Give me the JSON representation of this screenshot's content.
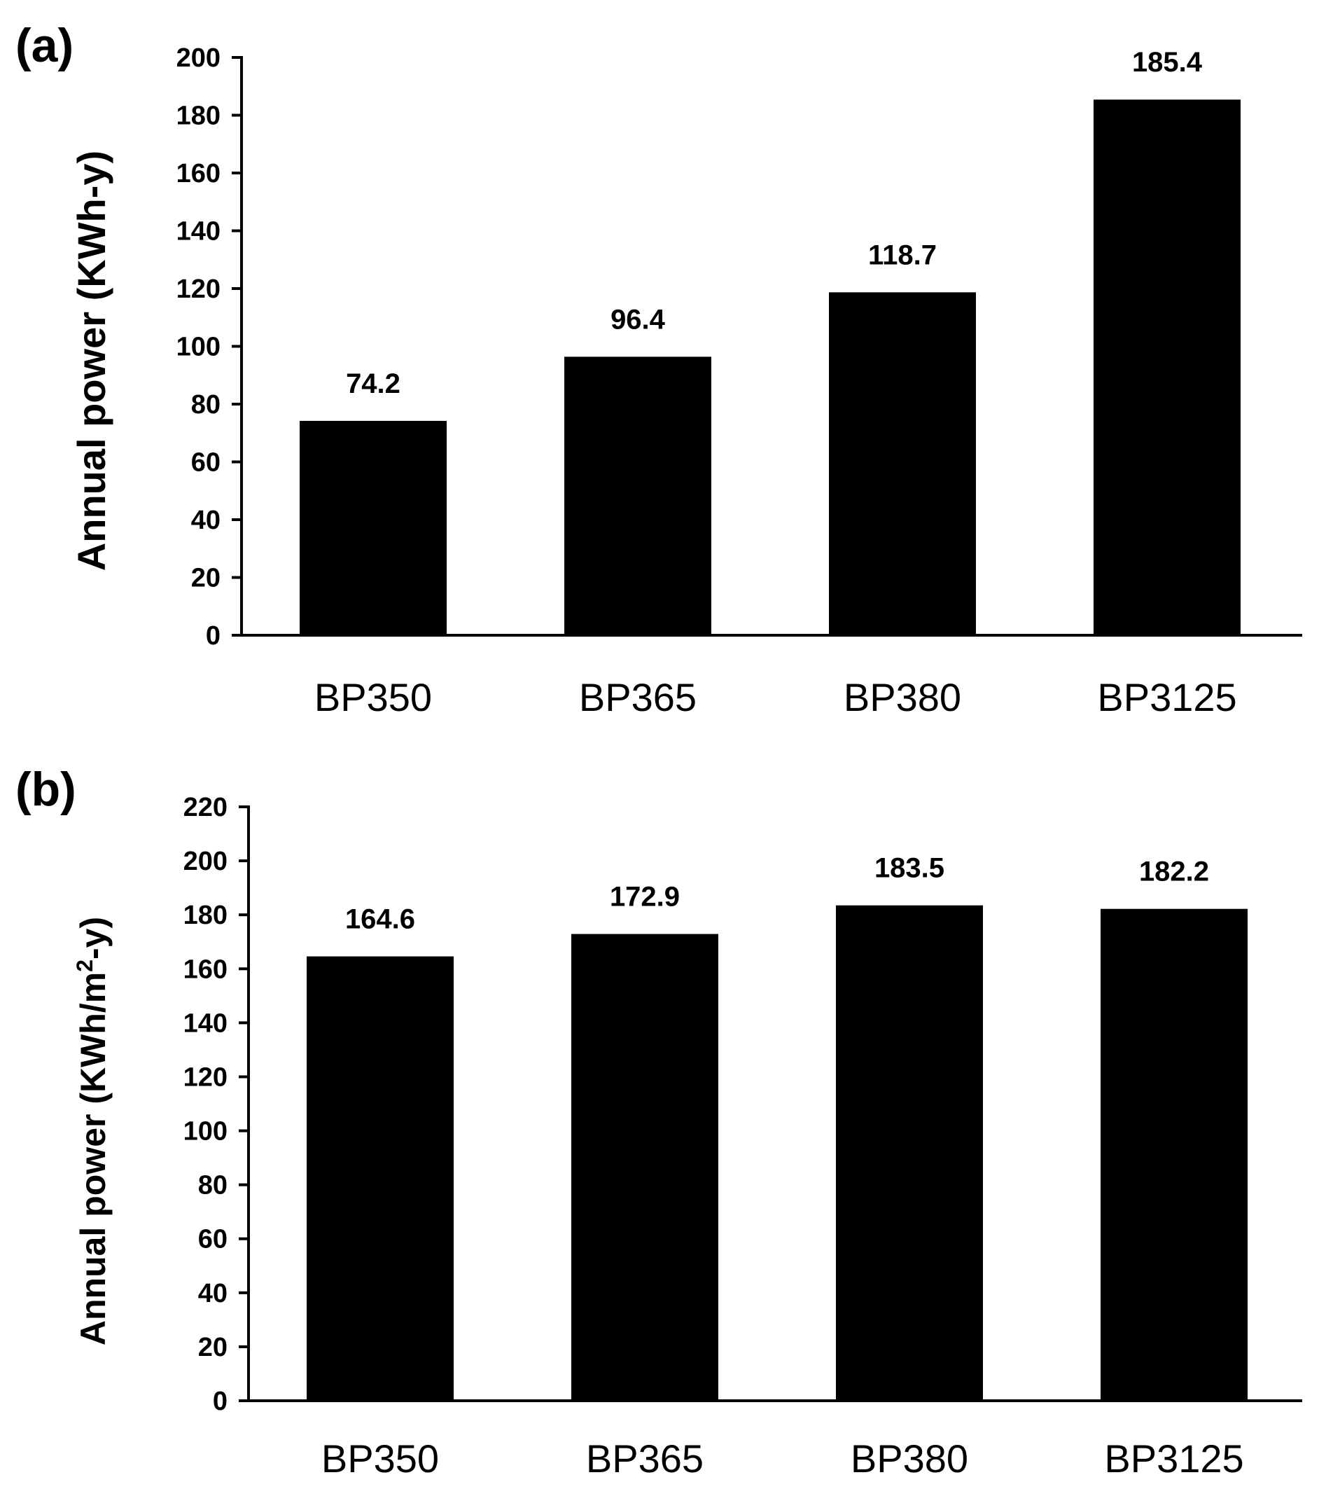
{
  "chart_data": [
    {
      "type": "bar",
      "panel_label": "(a)",
      "categories": [
        "BP350",
        "BP365",
        "BP380",
        "BP3125"
      ],
      "values": [
        74.2,
        96.4,
        118.7,
        185.4
      ],
      "value_labels": [
        "74.2",
        "96.4",
        "118.7",
        "185.4"
      ],
      "ylabel": "Annual power (KWh-y)",
      "ylim": [
        0,
        200
      ],
      "yticks": [
        "0",
        "20",
        "40",
        "60",
        "80",
        "100",
        "120",
        "140",
        "160",
        "180",
        "200"
      ],
      "bar_color": "#000000"
    },
    {
      "type": "bar",
      "panel_label": "(b)",
      "categories": [
        "BP350",
        "BP365",
        "BP380",
        "BP3125"
      ],
      "values": [
        164.6,
        172.9,
        183.5,
        182.2
      ],
      "value_labels": [
        "164.6",
        "172.9",
        "183.5",
        "182.2"
      ],
      "ylabel_prefix": "Annual power (KWh/m",
      "ylabel_sup": "2",
      "ylabel_suffix": "-y)",
      "ylim": [
        0,
        220
      ],
      "yticks": [
        "0",
        "20",
        "40",
        "60",
        "80",
        "100",
        "120",
        "140",
        "160",
        "180",
        "200",
        "220"
      ],
      "bar_color": "#000000"
    }
  ]
}
